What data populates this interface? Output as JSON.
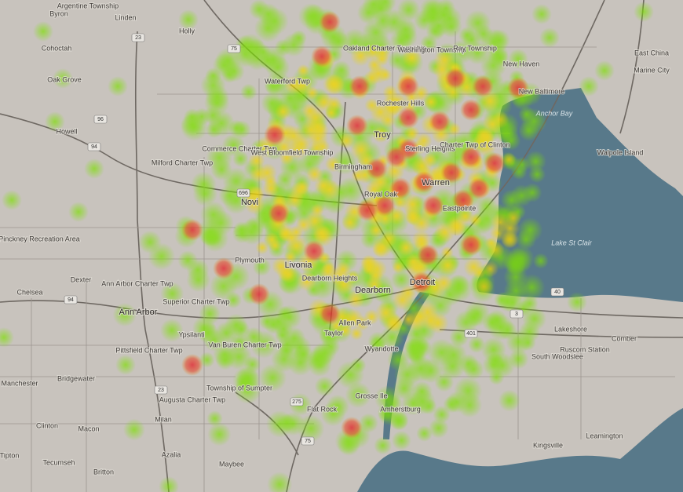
{
  "map": {
    "labels": [
      "Byron",
      "Argentine Township",
      "Linden",
      "Holly",
      "Cohoctah",
      "Oak Grove",
      "Howell",
      "Milford Charter Twp",
      "Pinckney Recreation Area",
      "Dexter",
      "Chelsea",
      "Ann Arbor Charter Twp",
      "Ann Arbor",
      "Superior Charter Twp",
      "Ypsilanti",
      "Pittsfield Charter Twp",
      "Van Buren Charter Twp",
      "Township of Sumpter",
      "Augusta Charter Twp",
      "Milan",
      "Manchester",
      "Bridgewater",
      "Clinton",
      "Macon",
      "Tipton",
      "Tecumseh",
      "Britton",
      "Azalia",
      "Maybee",
      "Waterford Twp",
      "Commerce Charter Twp",
      "West Bloomfield Township",
      "Novi",
      "Plymouth",
      "Livonia",
      "Dearborn Heights",
      "Dearborn",
      "Allen Park",
      "Taylor",
      "Wyandotte",
      "Detroit",
      "Birmingham",
      "Royal Oak",
      "Warren",
      "Troy",
      "Rochester Hills",
      "Sterling Heights",
      "Charter Twp of Clinton",
      "Eastpointe",
      "Oakland Charter Township",
      "Washington Township",
      "Ray Township",
      "New Haven",
      "New Baltimore",
      "East China",
      "Marine City",
      "Walpole Island",
      "Lakeshore",
      "Ruscom Station",
      "South Woodslee",
      "Comber",
      "Flat Rock",
      "Grosse Ile",
      "Amherstburg",
      "Kingsville",
      "Leamington"
    ],
    "water_labels": [
      "Anchor Bay",
      "Lake St Clair"
    ],
    "route_shields": [
      "23",
      "75",
      "96",
      "94",
      "696",
      "275",
      "94",
      "23",
      "75",
      "401",
      "3",
      "40"
    ]
  }
}
